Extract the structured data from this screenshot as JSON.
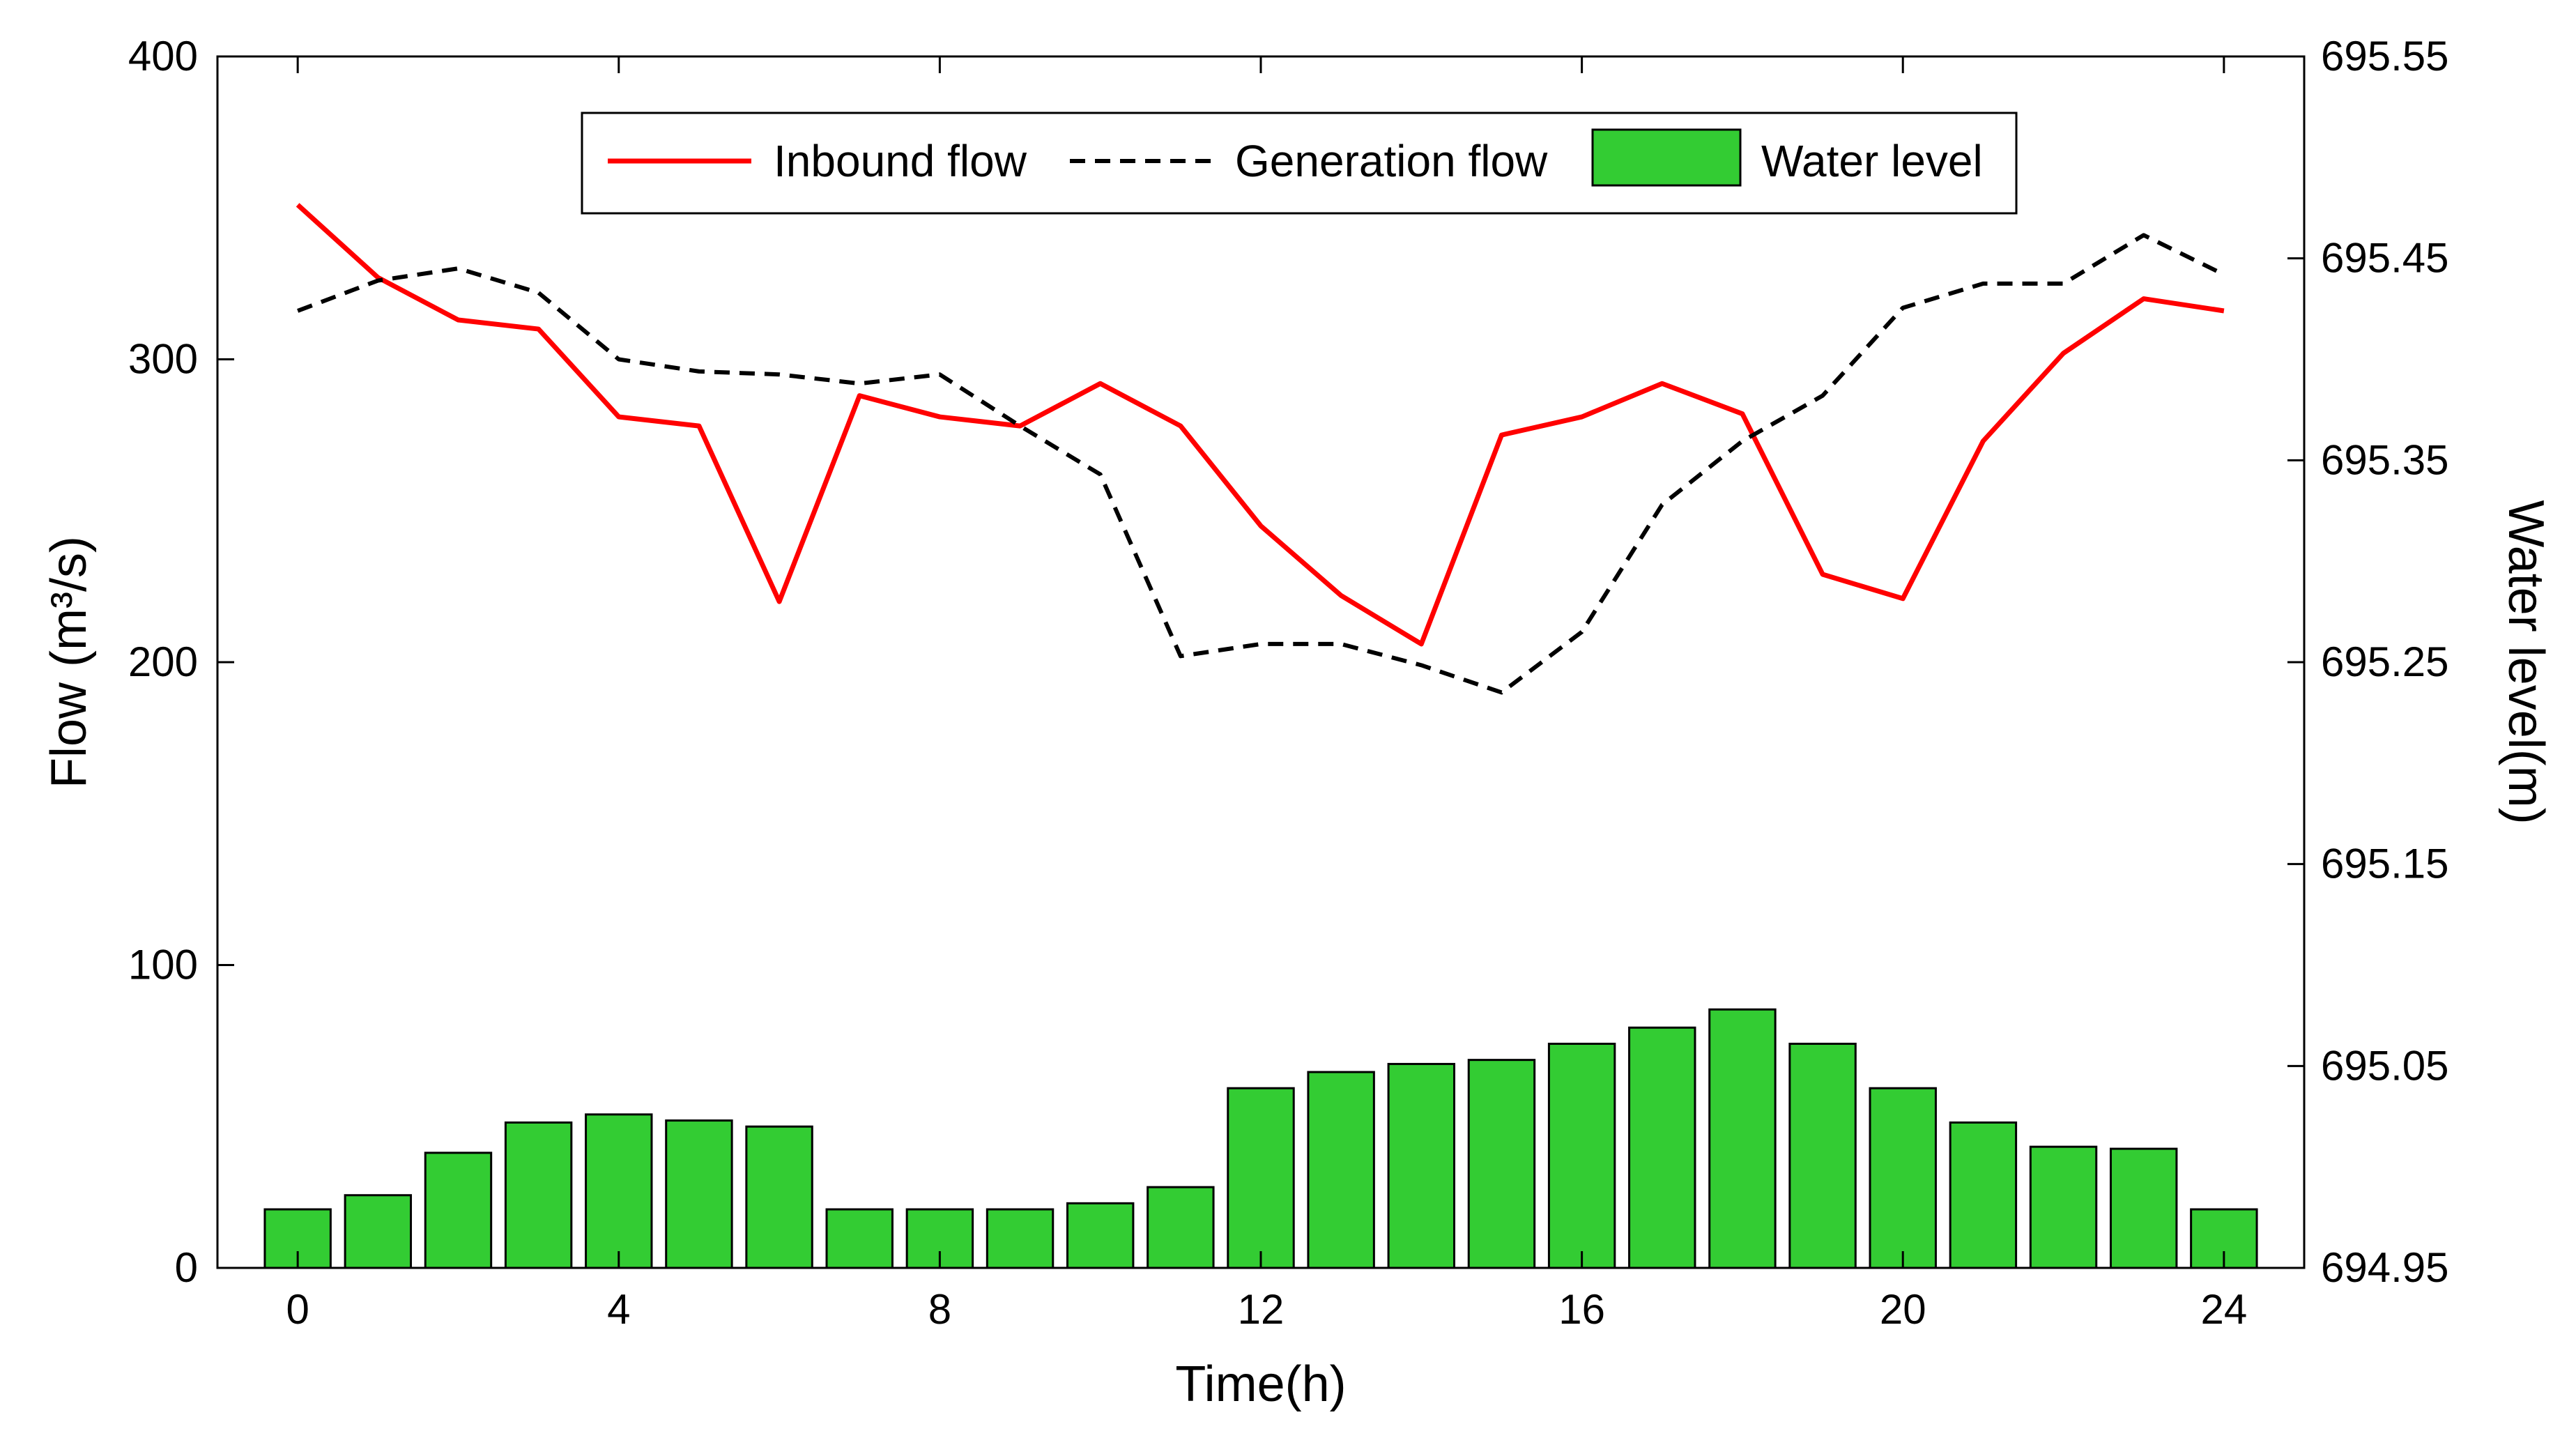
{
  "chart_data": {
    "type": "bar+line (dual axis)",
    "xlabel": "Time(h)",
    "ylabel_left": {
      "text": "Flow",
      "unit": "(m³/s)"
    },
    "ylabel_right": "Water level(m)",
    "x_ticks": [
      "0",
      "4",
      "8",
      "12",
      "16",
      "20",
      "24"
    ],
    "x_tick_values": [
      0,
      4,
      8,
      12,
      16,
      20,
      24
    ],
    "xlim": [
      -1,
      25
    ],
    "ylim_left": [
      0,
      400
    ],
    "ylim_right": [
      694.95,
      695.55
    ],
    "y_left_ticks": [
      "0",
      "100",
      "200",
      "300",
      "400"
    ],
    "y_left_tick_values": [
      0,
      100,
      200,
      300,
      400
    ],
    "y_right_ticks": [
      "694.95",
      "695.05",
      "695.15",
      "695.25",
      "695.35",
      "695.45",
      "695.55"
    ],
    "y_right_tick_values": [
      694.95,
      695.05,
      695.15,
      695.25,
      695.35,
      695.45,
      695.55
    ],
    "legend_position": "top-center",
    "x": [
      0,
      1,
      2,
      3,
      4,
      5,
      6,
      7,
      8,
      9,
      10,
      11,
      12,
      13,
      14,
      15,
      16,
      17,
      18,
      19,
      20,
      21,
      22,
      23,
      24
    ],
    "series": [
      {
        "name": "Inbound flow",
        "type": "line",
        "axis": "left",
        "color": "#ff0000",
        "dash": "solid",
        "values": [
          351,
          327,
          313,
          310,
          281,
          278,
          220,
          288,
          281,
          278,
          292,
          278,
          245,
          222,
          206,
          275,
          281,
          292,
          282,
          229,
          221,
          273,
          302,
          320,
          316
        ]
      },
      {
        "name": "Generation flow",
        "type": "line",
        "axis": "left",
        "color": "#000000",
        "dash": "dashed",
        "values": [
          316,
          326,
          330,
          322,
          300,
          296,
          295,
          292,
          295,
          278,
          262,
          202,
          206,
          206,
          199,
          190,
          210,
          252,
          273,
          288,
          317,
          325,
          325,
          341,
          328
        ]
      },
      {
        "name": "Water level",
        "type": "bar",
        "axis": "right",
        "color": "#33cc33",
        "values": [
          694.979,
          694.986,
          695.007,
          695.022,
          695.026,
          695.023,
          695.02,
          694.979,
          694.979,
          694.979,
          694.982,
          694.99,
          695.039,
          695.047,
          695.051,
          695.053,
          695.061,
          695.069,
          695.078,
          695.061,
          695.039,
          695.022,
          695.01,
          695.009,
          694.979
        ]
      }
    ]
  }
}
